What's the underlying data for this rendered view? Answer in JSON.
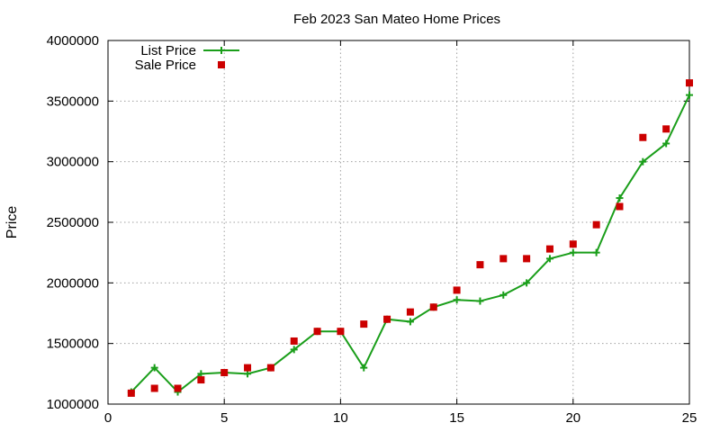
{
  "chart_data": {
    "type": "line",
    "title": "Feb 2023 San Mateo Home Prices",
    "xlabel": "",
    "ylabel": "Price",
    "xlim": [
      0,
      25
    ],
    "ylim": [
      1000000,
      4000000
    ],
    "xticks": [
      0,
      5,
      10,
      15,
      20,
      25
    ],
    "yticks": [
      1000000,
      1500000,
      2000000,
      2500000,
      3000000,
      3500000,
      4000000
    ],
    "grid": true,
    "legend_position": "top-left",
    "series": [
      {
        "name": "List Price",
        "mark": "line+cross",
        "color": "#1a9e1a",
        "x": [
          1,
          2,
          3,
          4,
          5,
          6,
          7,
          8,
          9,
          10,
          11,
          12,
          13,
          14,
          15,
          16,
          17,
          18,
          19,
          20,
          21,
          22,
          23,
          24,
          25
        ],
        "values": [
          1100000,
          1300000,
          1100000,
          1250000,
          1260000,
          1250000,
          1300000,
          1450000,
          1600000,
          1600000,
          1300000,
          1700000,
          1680000,
          1800000,
          1860000,
          1850000,
          1900000,
          2000000,
          2200000,
          2250000,
          2250000,
          2700000,
          3000000,
          3150000,
          3550000
        ]
      },
      {
        "name": "Sale Price",
        "mark": "square",
        "color": "#cc0000",
        "x": [
          1,
          2,
          3,
          4,
          5,
          6,
          7,
          8,
          9,
          10,
          11,
          12,
          13,
          14,
          15,
          16,
          17,
          18,
          19,
          20,
          21,
          22,
          23,
          24,
          25
        ],
        "values": [
          1090000,
          1130000,
          1130000,
          1200000,
          1260000,
          1300000,
          1300000,
          1520000,
          1600000,
          1600000,
          1660000,
          1700000,
          1760000,
          1800000,
          1940000,
          2150000,
          2200000,
          2200000,
          2280000,
          2320000,
          2480000,
          2630000,
          3200000,
          3270000,
          3650000
        ]
      }
    ]
  }
}
